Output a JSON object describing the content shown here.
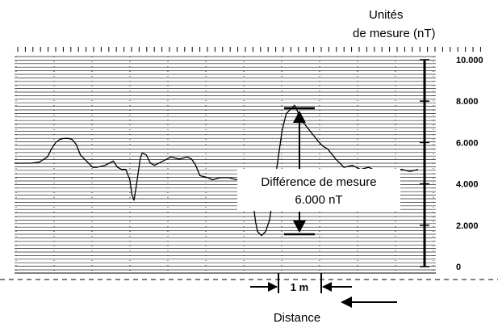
{
  "units_label_line1": "Unités",
  "units_label_line2": "de mesure (nT)",
  "annotation_line1": "Différence de mesure",
  "annotation_line2": "6.000 nT",
  "scale_label": "1 m",
  "distance_label": "Distance",
  "chart_data": {
    "type": "line",
    "ylabel": "Unités de mesure (nT)",
    "xlabel": "Distance",
    "ylim": [
      0,
      10000
    ],
    "yticks": [
      {
        "value": 0,
        "label": "0"
      },
      {
        "value": 2000,
        "label": "2.000"
      },
      {
        "value": 4000,
        "label": "4.000"
      },
      {
        "value": 6000,
        "label": "6.000"
      },
      {
        "value": 8000,
        "label": "8.000"
      },
      {
        "value": 10000,
        "label": "10.000"
      }
    ],
    "grid": true,
    "series": [
      {
        "x": [
          0,
          4,
          6,
          8,
          9,
          10,
          11,
          12,
          13,
          14,
          15,
          16,
          18,
          19,
          20,
          22,
          24,
          25,
          26,
          27,
          28,
          28.5,
          29,
          29.5,
          30,
          30.5,
          31,
          32,
          33,
          34,
          36,
          38,
          40,
          42,
          43,
          44,
          45,
          47,
          48,
          50,
          52,
          53,
          54,
          55,
          56,
          57,
          58,
          58.5,
          59,
          60,
          61,
          62,
          63,
          64,
          65,
          66,
          67,
          68,
          69,
          70,
          72,
          74,
          75,
          76,
          78,
          80,
          82,
          84,
          86,
          88,
          90,
          92,
          94,
          96,
          98
        ],
        "y": [
          5000,
          5000,
          5050,
          5300,
          5700,
          6000,
          6150,
          6200,
          6200,
          6150,
          5900,
          5400,
          5000,
          4800,
          4800,
          4900,
          5100,
          4800,
          4700,
          4700,
          4200,
          3500,
          3200,
          3800,
          4500,
          5200,
          5500,
          5400,
          5000,
          4900,
          5100,
          5300,
          5200,
          5300,
          5200,
          4900,
          4400,
          4300,
          4200,
          4300,
          4300,
          4250,
          4200,
          4250,
          4300,
          4300,
          3000,
          2200,
          1700,
          1500,
          1700,
          2300,
          3800,
          5200,
          6600,
          7400,
          7600,
          7800,
          7400,
          7000,
          6500,
          6000,
          5800,
          5700,
          5200,
          4800,
          4900,
          4700,
          4800,
          4600,
          4700,
          4600,
          4700,
          4600,
          4700
        ]
      }
    ]
  }
}
